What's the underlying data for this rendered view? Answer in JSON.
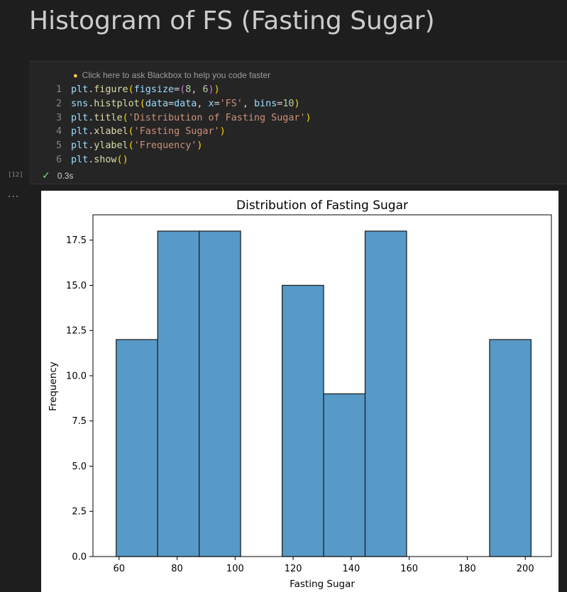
{
  "markdown": {
    "heading": "Histogram of FS (Fasting Sugar)"
  },
  "cell": {
    "hint_text": "Click here to ask Blackbox to help you code faster",
    "hint_icon": "lightbulb-icon",
    "execution_count": "[12]",
    "status_icon": "checkmark-icon",
    "execution_time": "0.3s",
    "output_menu": "...",
    "code_lines": [
      {
        "number": "1",
        "text": "plt.figure(figsize=(8, 6))"
      },
      {
        "number": "2",
        "text": "sns.histplot(data=data, x='FS', bins=10)"
      },
      {
        "number": "3",
        "text": "plt.title('Distribution of Fasting Sugar')"
      },
      {
        "number": "4",
        "text": "plt.xlabel('Fasting Sugar')"
      },
      {
        "number": "5",
        "text": "plt.ylabel('Frequency')"
      },
      {
        "number": "6",
        "text": "plt.show()"
      }
    ]
  },
  "colors": {
    "bar_fill": "#5799c7",
    "bar_edge": "#1a1a1a",
    "page_background": "#1e1e1e",
    "cell_background": "#252526"
  },
  "chart_data": {
    "type": "bar",
    "title": "Distribution of Fasting Sugar",
    "xlabel": "Fasting Sugar",
    "ylabel": "Frequency",
    "xlim": [
      51,
      209
    ],
    "ylim": [
      0,
      18.9
    ],
    "x_ticks": [
      60,
      80,
      100,
      120,
      140,
      160,
      180,
      200
    ],
    "y_ticks": [
      "0.0",
      "2.5",
      "5.0",
      "7.5",
      "10.0",
      "12.5",
      "15.0",
      "17.5"
    ],
    "bin_edges": [
      59,
      73.3,
      87.6,
      101.9,
      116.2,
      130.5,
      144.8,
      159.1,
      173.4,
      187.7,
      202
    ],
    "values": [
      12,
      18,
      18,
      0,
      15,
      9,
      18,
      0,
      0,
      12
    ],
    "grid": false,
    "legend": "none"
  }
}
